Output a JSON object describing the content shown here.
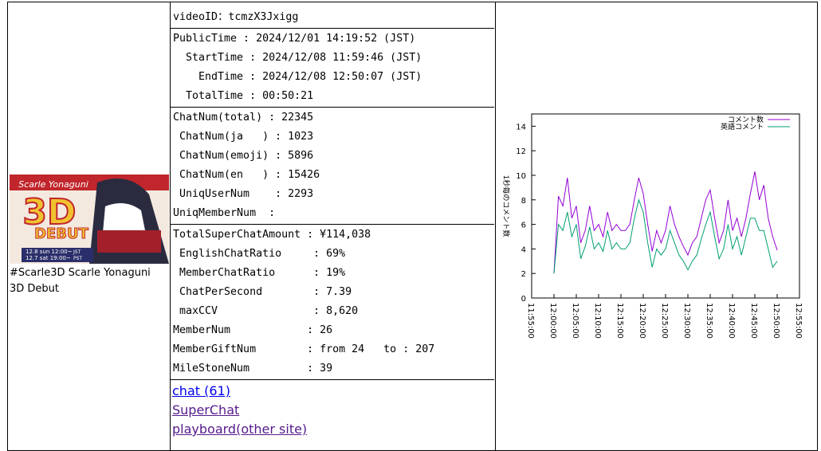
{
  "thumbnail": {
    "texts": [
      "Scarle Yonaguni",
      "3D",
      "DEBUT",
      "12.8 sun 12:00~",
      "JST",
      "12.7 sat 19:00~",
      "PST"
    ],
    "caption": "#Scarle3D Scarle Yonaguni 3D Debut"
  },
  "sections": [
    [
      "videoID：tcmzX3Jxigg"
    ],
    [
      "PublicTime : 2024/12/01 14:19:52 (JST)",
      "  StartTime : 2024/12/08 11:59:46 (JST)",
      "    EndTime : 2024/12/08 12:50:07 (JST)",
      "  TotalTime : 00:50:21"
    ],
    [
      "ChatNum(total) : 22345",
      " ChatNum(ja   ) : 1023",
      " ChatNum(emoji) : 5896",
      " ChatNum(en   ) : 15426",
      " UniqUserNum    : 2293",
      "UniqMemberNum  :"
    ],
    [
      "TotalSuperChatAmount : ¥114,038",
      " EnglishChatRatio     : 69%",
      " MemberChatRatio      : 19%",
      " ChatPerSecond        : 7.39",
      " maxCCV               : 8,620",
      "MemberNum            : 26",
      "MemberGiftNum        : from 24   to : 207",
      "MileStoneNum         : 39"
    ]
  ],
  "links": [
    {
      "text": "chat (61)",
      "color": "#0000ee"
    },
    {
      "text": "SuperChat",
      "color": "#551a8b"
    },
    {
      "text": "playboard(other site)",
      "color": "#551a8b"
    }
  ],
  "chart_data": {
    "type": "line",
    "y_label": "1秒毎のコメント数",
    "x": [
      "12:00:00",
      "12:01:00",
      "12:02:00",
      "12:03:00",
      "12:04:00",
      "12:05:00",
      "12:06:00",
      "12:07:00",
      "12:08:00",
      "12:09:00",
      "12:10:00",
      "12:11:00",
      "12:12:00",
      "12:13:00",
      "12:14:00",
      "12:15:00",
      "12:16:00",
      "12:17:00",
      "12:18:00",
      "12:19:00",
      "12:20:00",
      "12:21:00",
      "12:22:00",
      "12:23:00",
      "12:24:00",
      "12:25:00",
      "12:26:00",
      "12:27:00",
      "12:28:00",
      "12:29:00",
      "12:30:00",
      "12:31:00",
      "12:32:00",
      "12:33:00",
      "12:34:00",
      "12:35:00",
      "12:36:00",
      "12:37:00",
      "12:38:00",
      "12:39:00",
      "12:40:00",
      "12:41:00",
      "12:42:00",
      "12:43:00",
      "12:44:00",
      "12:45:00",
      "12:46:00",
      "12:47:00",
      "12:48:00",
      "12:49:00",
      "12:50:00"
    ],
    "series": [
      {
        "name": "コメント数",
        "color": "#9400d3",
        "values": [
          2,
          8.3,
          7.5,
          9.8,
          6.5,
          7.5,
          4.5,
          5.5,
          7.5,
          5.5,
          6,
          5,
          7,
          5.5,
          6,
          5.5,
          5.5,
          6,
          8,
          9.8,
          8.5,
          6,
          3.8,
          5.5,
          4.5,
          5.5,
          7.5,
          6,
          5,
          4.2,
          3.5,
          4.5,
          5,
          6.5,
          8,
          8.8,
          6.5,
          4.5,
          5.5,
          8,
          5.5,
          6.5,
          5,
          6.5,
          8.5,
          10.3,
          8,
          9.2,
          6.5,
          5,
          3.9
        ]
      },
      {
        "name": "英語コメント",
        "color": "#009e73",
        "values": [
          2,
          6,
          5.5,
          7,
          5,
          6,
          3.2,
          4.2,
          5.8,
          4,
          4.5,
          3.8,
          5.5,
          4,
          4.5,
          4,
          4,
          4.5,
          6.5,
          8,
          7,
          4.5,
          2.5,
          4,
          3.5,
          4,
          5.5,
          4.5,
          3.5,
          3,
          2.3,
          3,
          3.5,
          4.8,
          6,
          7,
          5,
          3.2,
          4,
          6,
          4,
          5,
          3.5,
          5,
          6.5,
          6.5,
          5.5,
          5.5,
          4,
          2.5,
          3
        ]
      }
    ],
    "xlim": [
      "11:55:00",
      "12:55:00"
    ],
    "xticks": [
      "11:55:00",
      "12:00:00",
      "12:05:00",
      "12:10:00",
      "12:15:00",
      "12:20:00",
      "12:25:00",
      "12:30:00",
      "12:35:00",
      "12:40:00",
      "12:45:00",
      "12:50:00",
      "12:55:00"
    ],
    "ylim": [
      0,
      15
    ],
    "yticks": [
      0,
      2,
      4,
      6,
      8,
      10,
      12,
      14
    ],
    "legend": "upper right"
  }
}
